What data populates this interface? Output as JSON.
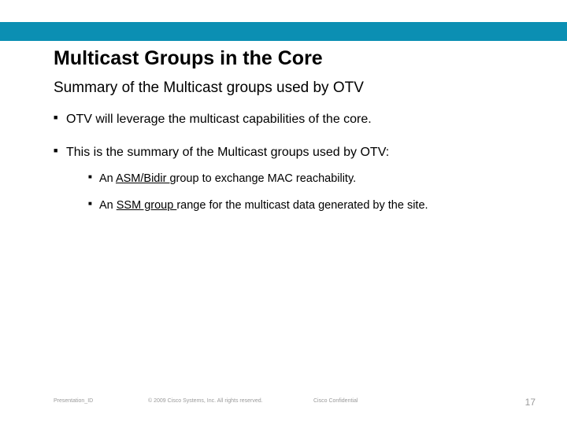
{
  "colors": {
    "top_bar": "#0b8fb3",
    "text": "#000000",
    "footer_text": "#9a9a9a",
    "background": "#ffffff"
  },
  "title": "Multicast Groups in the Core",
  "subtitle": "Summary of the Multicast groups used by OTV",
  "bullets": [
    {
      "text": "OTV will leverage the multicast capabilities of the core."
    },
    {
      "text": "This is the summary of the Multicast groups used by OTV:",
      "children": [
        {
          "pre": "An ",
          "ul": "ASM/Bidir ",
          "post": "group to exchange MAC reachability."
        },
        {
          "pre": "An ",
          "ul": "SSM group ",
          "post": "range for the multicast data generated by the site."
        }
      ]
    }
  ],
  "footer": {
    "left": "Presentation_ID",
    "mid": "© 2009 Cisco Systems, Inc. All rights reserved.",
    "conf": "Cisco Confidential",
    "page": "17"
  }
}
